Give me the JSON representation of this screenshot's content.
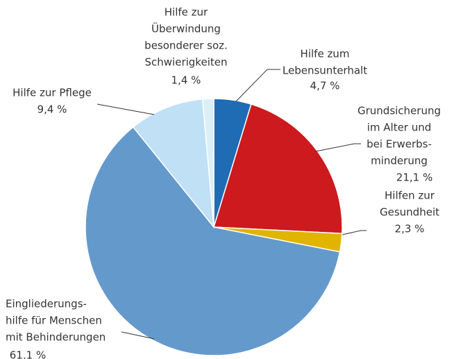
{
  "chart_data": {
    "type": "pie",
    "categories": [
      [
        "Hilfe zum",
        "Lebensunterhalt"
      ],
      [
        "Grundsicherung",
        "im Alter und",
        "bei Erwerbs-",
        "minderung"
      ],
      [
        "Hilfen zur",
        "Gesundheit"
      ],
      [
        "Eingliederungs-",
        "hilfe für Menschen",
        "mit Behinderungen"
      ],
      [
        "Hilfe zur Pflege"
      ],
      [
        "Hilfe zur",
        "Überwindung",
        "besonderer soz.",
        "Schwierigkeiten"
      ]
    ],
    "values": [
      4.7,
      21.1,
      2.3,
      61.1,
      9.4,
      1.4
    ],
    "value_labels": [
      "4,7 %",
      "21,1 %",
      "2,3 %",
      "61,1 %",
      "9,4 %",
      "1,4 %"
    ],
    "colors": [
      "#1f6cb5",
      "#cc1a1e",
      "#e0b400",
      "#6499cc",
      "#bfe0f5",
      "#dceff9"
    ]
  }
}
